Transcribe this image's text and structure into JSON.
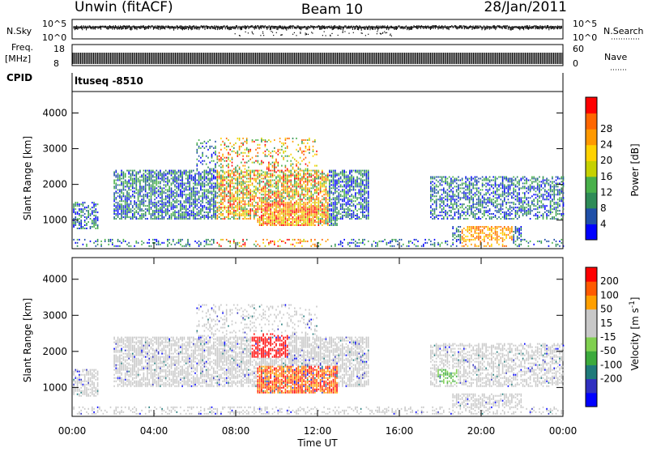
{
  "header": {
    "station": "Unwin (fitACF)",
    "beam": "Beam 10",
    "date": "28/Jan/2011"
  },
  "nsky": {
    "left_label": "N.Sky",
    "right_label": "N.Search",
    "left_ticks": [
      "10^5",
      "10^0"
    ],
    "right_ticks": [
      "10^5",
      "10^0"
    ]
  },
  "freq": {
    "left_label_1": "Freq.",
    "left_label_2": "[MHz]",
    "left_ticks": [
      "18",
      "8"
    ],
    "right_label": "Nave",
    "right_ticks": [
      "60",
      "0"
    ]
  },
  "cpid": {
    "label": "CPID",
    "text": "ltuseq -8510"
  },
  "x_axis": {
    "label": "Time UT",
    "ticks": [
      "00:00",
      "04:00",
      "08:00",
      "12:00",
      "16:00",
      "20:00",
      "00:00"
    ]
  },
  "colors": {
    "power_scale": [
      "#0000ff",
      "#1f4fa8",
      "#2e8b57",
      "#48b04a",
      "#c6d100",
      "#ffd200",
      "#ff9900",
      "#ff6600",
      "#ff0000"
    ],
    "velocity_scale": [
      "#ff0000",
      "#ff5a00",
      "#ff9f00",
      "#c8c8c8",
      "#c8c8c8",
      "#80d050",
      "#3caa3c",
      "#1f7a7a",
      "#3030c0",
      "#0000ff"
    ]
  },
  "chart_data": [
    {
      "type": "heatmap",
      "name": "power",
      "ylabel": "Slant Range [km]",
      "ylim": [
        200,
        4600
      ],
      "y_ticks": [
        1000,
        2000,
        3000,
        4000
      ],
      "xlim": [
        0,
        24
      ],
      "colorbar": {
        "label": "Power [dB]",
        "range": [
          0,
          32
        ],
        "ticks": [
          4,
          8,
          12,
          16,
          20,
          24,
          28
        ]
      }
    },
    {
      "type": "heatmap",
      "name": "velocity",
      "ylabel": "Slant Range [km]",
      "ylim": [
        200,
        4600
      ],
      "y_ticks": [
        1000,
        2000,
        3000,
        4000
      ],
      "xlim": [
        0,
        24
      ],
      "colorbar": {
        "label": "Velocity [m s^-1]",
        "ticks": [
          200,
          100,
          50,
          15,
          -15,
          -50,
          -100,
          -200
        ]
      }
    }
  ]
}
